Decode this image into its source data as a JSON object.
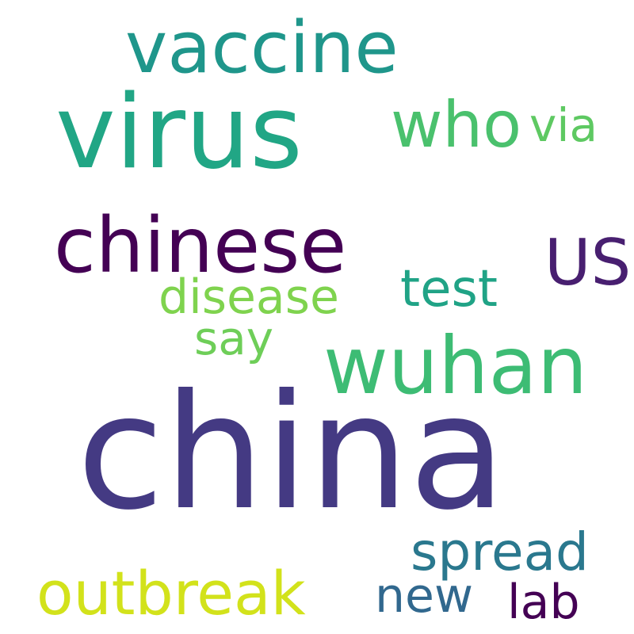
{
  "words": [
    {
      "text": "china",
      "color": "#443a83"
    },
    {
      "text": "virus",
      "color": "#21a685"
    },
    {
      "text": "vaccine",
      "color": "#1f968b"
    },
    {
      "text": "chinese",
      "color": "#440154"
    },
    {
      "text": "wuhan",
      "color": "#3dbc74"
    },
    {
      "text": "who",
      "color": "#4ac16d"
    },
    {
      "text": "via",
      "color": "#5ec962"
    },
    {
      "text": "US",
      "color": "#481f70"
    },
    {
      "text": "test",
      "color": "#20a386"
    },
    {
      "text": "disease",
      "color": "#7fd34e"
    },
    {
      "text": "say",
      "color": "#6ece58"
    },
    {
      "text": "spread",
      "color": "#2a788e"
    },
    {
      "text": "outbreak",
      "color": "#d2e21b"
    },
    {
      "text": "new",
      "color": "#31688e"
    },
    {
      "text": "lab",
      "color": "#440154"
    }
  ]
}
